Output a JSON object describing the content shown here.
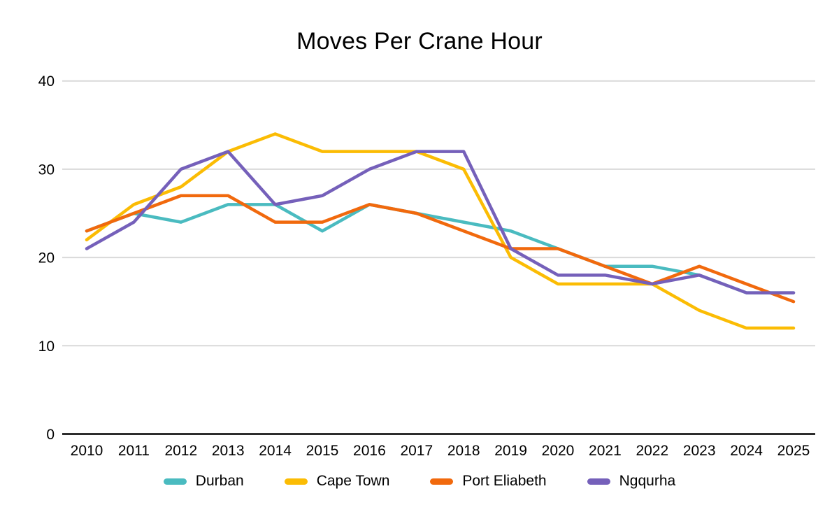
{
  "title": "Moves Per Crane Hour",
  "chart_data": {
    "type": "line",
    "x": [
      2010,
      2011,
      2012,
      2013,
      2014,
      2015,
      2016,
      2017,
      2018,
      2019,
      2020,
      2021,
      2022,
      2023,
      2024,
      2025
    ],
    "series": [
      {
        "name": "Durban",
        "color": "#4ABBC0",
        "values": [
          23,
          25,
          24,
          26,
          26,
          23,
          26,
          25,
          24,
          23,
          21,
          19,
          19,
          18,
          16,
          16
        ]
      },
      {
        "name": "Cape Town",
        "color": "#FBBC04",
        "values": [
          22,
          26,
          28,
          32,
          34,
          32,
          32,
          32,
          30,
          20,
          17,
          17,
          17,
          14,
          12,
          12
        ]
      },
      {
        "name": "Port Eliabeth",
        "color": "#F1690D",
        "values": [
          23,
          25,
          27,
          27,
          24,
          24,
          26,
          25,
          23,
          21,
          21,
          19,
          17,
          19,
          17,
          15
        ]
      },
      {
        "name": "Ngqurha",
        "color": "#7560BA",
        "values": [
          21,
          24,
          30,
          32,
          26,
          27,
          30,
          32,
          32,
          21,
          18,
          18,
          17,
          18,
          16,
          16
        ]
      }
    ],
    "ylim": [
      0,
      40
    ],
    "yticks": [
      0,
      10,
      20,
      30,
      40
    ],
    "grid": true,
    "gridline_color": "#d9d9d9",
    "axis_color": "#000000",
    "legend_position": "bottom"
  }
}
